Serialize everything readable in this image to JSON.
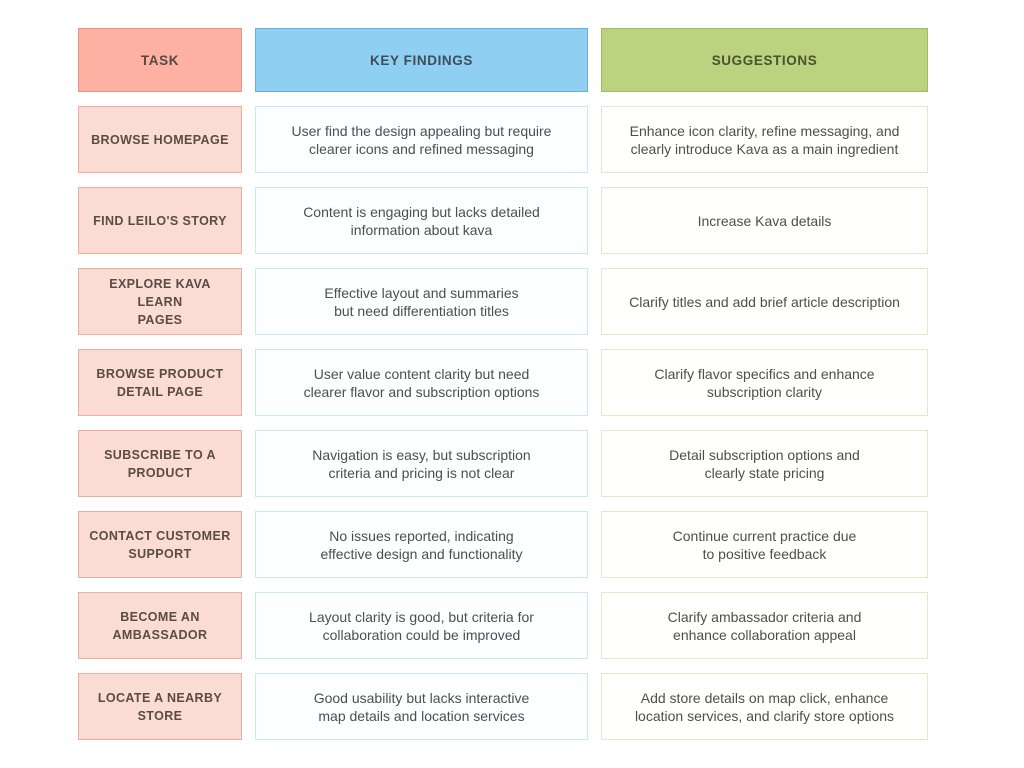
{
  "title": "Usability testing findings table",
  "colors": {
    "salmon_header_bg": "#FCB1A2",
    "salmon_header_border": "#E99486",
    "salmon_header_text": "#594743",
    "blue_header_bg": "#8FCFF1",
    "blue_header_border": "#6CAFD4",
    "blue_header_text": "#3E4E59",
    "green_header_bg": "#BBD27E",
    "green_header_border": "#A2BA60",
    "green_header_text": "#4A522F",
    "task_cell_bg": "#FBDCD4",
    "task_cell_border": "#EFAD9F",
    "task_cell_text": "#5A4B44",
    "finding_cell_border": "#CDE7F6",
    "suggestion_cell_border": "#EAE5C8",
    "body_text": "#4E4E4E",
    "page_bg": "#FFFFFF"
  },
  "chart_data": {
    "type": "table",
    "title": "",
    "columns": [
      "TASK",
      "KEY FINDINGS",
      "SUGGESTIONS"
    ],
    "rows": [
      [
        "BROWSE HOMEPAGE",
        "User find the design appealing but require clearer icons and refined messaging",
        "Enhance icon clarity, refine messaging, and clearly introduce Kava as a main ingredient"
      ],
      [
        "FIND LEILO'S STORY",
        "Content is engaging but lacks detailed information about kava",
        "Increase Kava details"
      ],
      [
        "EXPLORE KAVA LEARN PAGES",
        "Effective layout and summaries but need differentiation titles",
        "Clarify titles and add brief article description"
      ],
      [
        "BROWSE PRODUCT DETAIL PAGE",
        "User value content clarity but need clearer flavor and subscription options",
        "Clarify flavor specifics and enhance subscription clarity"
      ],
      [
        "SUBSCRIBE TO A PRODUCT",
        "Navigation is easy, but subscription criteria and pricing is not clear",
        "Detail subscription options and clearly state pricing"
      ],
      [
        "CONTACT CUSTOMER SUPPORT",
        "No issues reported, indicating effective design and functionality",
        "Continue current practice due to positive feedback"
      ],
      [
        "BECOME AN AMBASSADOR",
        "Layout clarity is good, but criteria for collaboration could be improved",
        "Clarify ambassador criteria and enhance collaboration appeal"
      ],
      [
        "LOCATE A NEARBY STORE",
        "Good usability but lacks interactive map details and location services",
        "Add store details on map click, enhance location services, and clarify store options"
      ]
    ]
  },
  "table": {
    "headers": [
      {
        "id": "task",
        "label": "TASK"
      },
      {
        "id": "key_findings",
        "label": "KEY FINDINGS"
      },
      {
        "id": "suggestions",
        "label": "SUGGESTIONS"
      }
    ],
    "rows": [
      {
        "task": "BROWSE HOMEPAGE",
        "finding": "User find the design appealing but require\nclearer icons and refined messaging",
        "suggestion": "Enhance icon clarity, refine messaging, and\nclearly introduce Kava as a main ingredient"
      },
      {
        "task": "FIND LEILO'S STORY",
        "finding": "Content is engaging but lacks detailed\ninformation about kava",
        "suggestion": "Increase Kava details"
      },
      {
        "task": "EXPLORE KAVA LEARN\nPAGES",
        "finding": "Effective layout and summaries\nbut need differentiation titles",
        "suggestion": "Clarify titles and add brief article description"
      },
      {
        "task": "BROWSE PRODUCT\nDETAIL PAGE",
        "finding": "User value content clarity but need\nclearer flavor and subscription options",
        "suggestion": "Clarify flavor specifics and enhance\nsubscription clarity"
      },
      {
        "task": "SUBSCRIBE TO A\nPRODUCT",
        "finding": "Navigation is easy, but subscription\ncriteria and pricing is not clear",
        "suggestion": "Detail subscription options and\nclearly state pricing"
      },
      {
        "task": "CONTACT CUSTOMER\nSUPPORT",
        "finding": "No issues reported, indicating\neffective design and functionality",
        "suggestion": "Continue current practice due\nto positive feedback"
      },
      {
        "task": "BECOME AN\nAMBASSADOR",
        "finding": "Layout clarity is good, but criteria for\ncollaboration could be improved",
        "suggestion": "Clarify ambassador criteria and\nenhance collaboration appeal"
      },
      {
        "task": "LOCATE A NEARBY\nSTORE",
        "finding": "Good usability but lacks interactive\nmap details and location services",
        "suggestion": "Add store details on map click, enhance\nlocation services, and clarify store options"
      }
    ]
  }
}
